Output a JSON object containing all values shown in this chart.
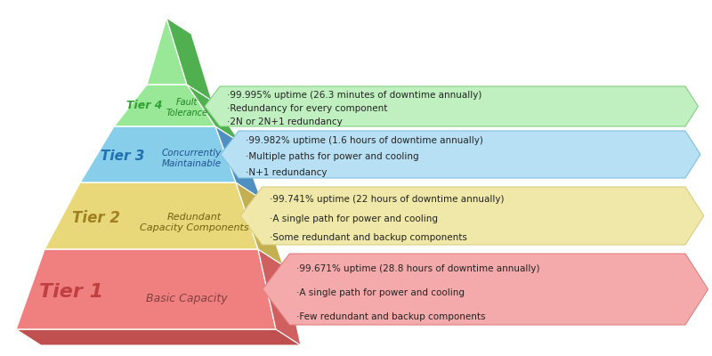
{
  "tiers": [
    {
      "label": "Tier 1",
      "sublabel": "Basic Capacity",
      "tier_color": "#F08080",
      "tier_side_color": "#D06060",
      "tier_bottom_color": "#C05050",
      "tier_label_color": "#C04040",
      "sublabel_color": "#804040",
      "arrow_color": "#F4AAAA",
      "arrow_edge": "#E08080",
      "bullet_text": [
        "·99.671% uptime (28.8 hours of downtime annually)",
        "·A single path for power and cooling",
        "·Few redundant and backup components"
      ]
    },
    {
      "label": "Tier 2",
      "sublabel": "Redundant\nCapacity Components",
      "tier_color": "#E8D87A",
      "tier_side_color": "#C4B050",
      "tier_bottom_color": "#B09840",
      "tier_label_color": "#A08020",
      "sublabel_color": "#706010",
      "arrow_color": "#F0E8A8",
      "arrow_edge": "#D8CC80",
      "bullet_text": [
        "·99.741% uptime (22 hours of downtime annually)",
        "·A single path for power and cooling",
        "·Some redundant and backup components"
      ]
    },
    {
      "label": "Tier 3",
      "sublabel": "Concurrently\nMaintainable",
      "tier_color": "#87CEEB",
      "tier_side_color": "#5090C0",
      "tier_bottom_color": "#4080B0",
      "tier_label_color": "#2070B0",
      "sublabel_color": "#205090",
      "arrow_color": "#B8E0F4",
      "arrow_edge": "#80C0E0",
      "bullet_text": [
        "·99.982% uptime (1.6 hours of downtime annually)",
        "·Multiple paths for power and cooling",
        "·N+1 redundancy"
      ]
    },
    {
      "label": "Tier 4",
      "sublabel": "Fault\nTolerance",
      "tier_color": "#98E898",
      "tier_side_color": "#50B050",
      "tier_bottom_color": "#409040",
      "tier_label_color": "#30A030",
      "sublabel_color": "#208020",
      "arrow_color": "#C0F0C0",
      "arrow_edge": "#80D080",
      "bullet_text": [
        "·99.995% uptime (26.3 minutes of downtime annually)",
        "·Redundancy for every component",
        "·2N or 2N+1 redundancy"
      ]
    }
  ],
  "bg_color": "#FFFFFF",
  "figsize": [
    8.0,
    4.0
  ],
  "dpi": 100
}
